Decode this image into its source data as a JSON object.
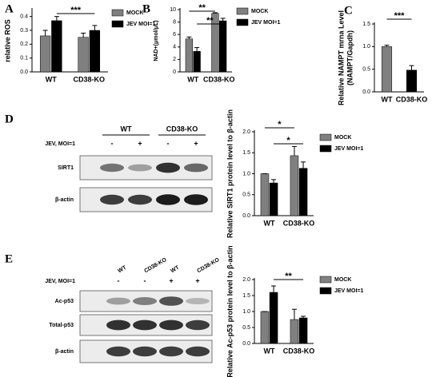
{
  "panel_labels": [
    "A",
    "B",
    "C",
    "D",
    "E"
  ],
  "blots": [
    {
      "headers": [
        "WT",
        "CD38-KO"
      ],
      "condition": "JEV, MOI=1",
      "signs": [
        "-",
        "+",
        "-",
        "+"
      ],
      "rows": [
        "SIRT1",
        "β-actin"
      ]
    },
    {
      "headers": [
        "WT",
        "CD38-KO",
        "WT",
        "CD38-KO"
      ],
      "condition": "JEV, MOI=1",
      "signs": [
        "-",
        "-",
        "+",
        "+"
      ],
      "rows": [
        "Ac-p53",
        "Total-p53",
        "β-actin"
      ]
    }
  ],
  "chart_data": [
    {
      "type": "bar",
      "y_label": [
        "relative ROS"
      ],
      "categories": [
        "WT",
        "CD38-KO"
      ],
      "series": [
        {
          "name": "MOCK",
          "color": "#808080",
          "values": [
            0.26,
            0.25
          ],
          "errors": [
            0.04,
            0.03
          ]
        },
        {
          "name": "JEV MOI=1",
          "color": "#000000",
          "values": [
            0.37,
            0.3
          ],
          "errors": [
            0.03,
            0.035
          ]
        }
      ],
      "ylim": [
        0,
        0.45
      ],
      "yticks": [
        {
          "value": 0,
          "label": "0.0"
        },
        0.1,
        0.2,
        0.3,
        0.4
      ],
      "annotations": [
        "***"
      ]
    },
    {
      "type": "bar",
      "y_label": [
        "NAD+(μmol/μL)"
      ],
      "categories": [
        "WT",
        "CD38-KO"
      ],
      "series": [
        {
          "name": "MOCK",
          "color": "#808080",
          "values": [
            5.3,
            9.4
          ],
          "errors": [
            0.3,
            0.1
          ]
        },
        {
          "name": "JEV MOI=1",
          "color": "#000000",
          "values": [
            3.3,
            8.2
          ],
          "errors": [
            0.6,
            0.4
          ]
        }
      ],
      "ylim": [
        0,
        10
      ],
      "yticks": [
        0,
        2,
        4,
        6,
        8,
        10
      ],
      "annotations": [
        "**",
        "**"
      ]
    },
    {
      "type": "bar",
      "y_label": [
        "Relative NAMPT mrna Level",
        "(NAMPT/Gapdh)"
      ],
      "categories": [
        "WT",
        "CD38-KO"
      ],
      "series": [
        {
          "colors": [
            "#808080",
            "#000000"
          ],
          "values": [
            1.0,
            0.48
          ],
          "errors": [
            0.03,
            0.1
          ]
        }
      ],
      "ylim": [
        0,
        1.5
      ],
      "yticks": [
        {
          "value": 0,
          "label": "0.0"
        },
        0.5,
        {
          "value": 1,
          "label": "1.0"
        },
        1.5
      ],
      "annotations": [
        "***"
      ]
    },
    {
      "type": "bar",
      "y_label": [
        "Relative SIRT1 protein level to β-actin"
      ],
      "categories": [
        "WT",
        "CD38-KO"
      ],
      "series": [
        {
          "name": "MOCK",
          "color": "#808080",
          "values": [
            1.0,
            1.43
          ],
          "errors": [
            0,
            0.22
          ]
        },
        {
          "name": "JEV MOI=1",
          "color": "#000000",
          "values": [
            0.78,
            1.13
          ],
          "errors": [
            0.08,
            0.15
          ]
        }
      ],
      "ylim": [
        0,
        2.0
      ],
      "yticks": [
        {
          "value": 0,
          "label": "0.0"
        },
        0.5,
        {
          "value": 1,
          "label": "1.0"
        },
        1.5,
        {
          "value": 2,
          "label": "2.0"
        }
      ],
      "annotations": [
        "*",
        "*"
      ]
    },
    {
      "type": "bar",
      "y_label": [
        "Relative Ac-p53 protein level to β-actin"
      ],
      "categories": [
        "WT",
        "CD38-KO"
      ],
      "series": [
        {
          "name": "MOCK",
          "color": "#808080",
          "values": [
            1.0,
            0.75
          ],
          "errors": [
            0,
            0.32
          ]
        },
        {
          "name": "JEV MOI=1",
          "color": "#000000",
          "values": [
            1.6,
            0.8
          ],
          "errors": [
            0.2,
            0.05
          ]
        }
      ],
      "ylim": [
        0,
        2.0
      ],
      "yticks": [
        {
          "value": 0,
          "label": "0.0"
        },
        0.5,
        {
          "value": 1,
          "label": "1.0"
        },
        1.5,
        {
          "value": 2,
          "label": "2.0"
        }
      ],
      "annotations": [
        "**"
      ]
    }
  ]
}
